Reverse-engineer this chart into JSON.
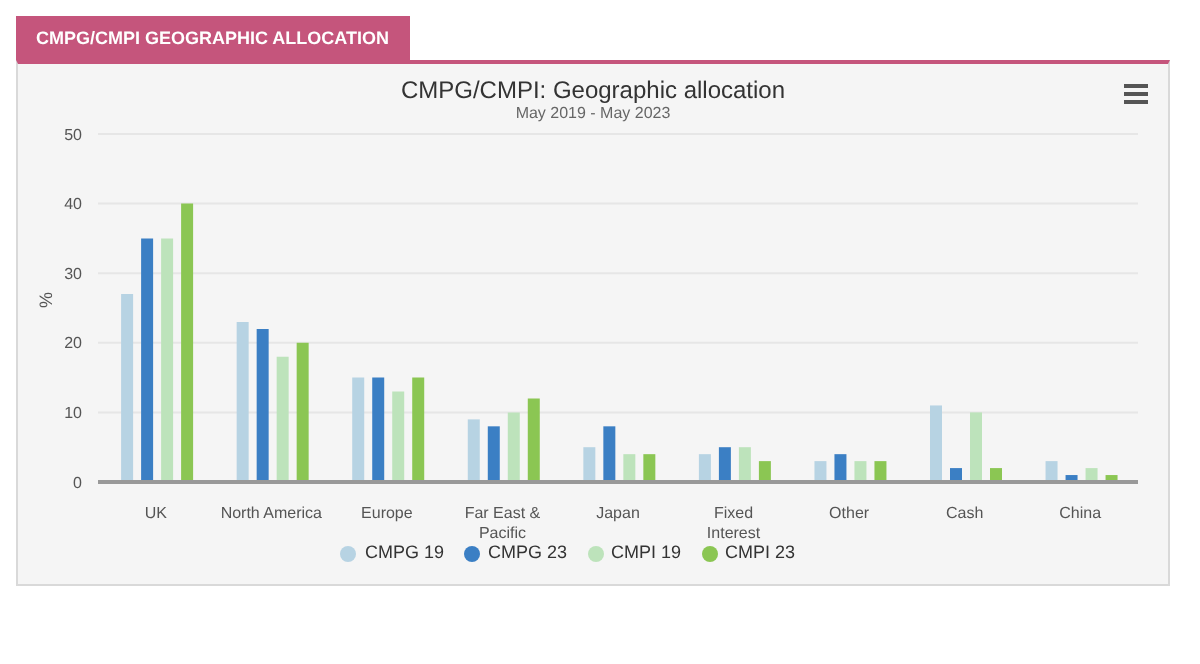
{
  "chart_data": {
    "type": "bar",
    "title": "CMPG/CMPI: Geographic allocation",
    "subtitle": "May 2019 - May 2023",
    "ylabel": "%",
    "annotations": [
      "CMPG/CMPI GEOGRAPHIC ALLOCATION"
    ],
    "categories": [
      "UK",
      "North America",
      "Europe",
      "Far East & Pacific",
      "Japan",
      "Fixed Interest",
      "Other",
      "Cash",
      "China"
    ],
    "series": [
      {
        "name": "CMPG 19",
        "color": "#b7d3e3",
        "values": [
          27,
          23,
          15,
          9,
          5,
          4,
          3,
          11,
          3
        ]
      },
      {
        "name": "CMPG 23",
        "color": "#3b7fc4",
        "values": [
          35,
          22,
          15,
          8,
          8,
          5,
          4,
          2,
          1
        ]
      },
      {
        "name": "CMPI 19",
        "color": "#bde3bb",
        "values": [
          35,
          18,
          13,
          10,
          4,
          5,
          3,
          10,
          2
        ]
      },
      {
        "name": "CMPI 23",
        "color": "#8bc653",
        "values": [
          40,
          20,
          15,
          12,
          4,
          3,
          3,
          2,
          1
        ]
      }
    ],
    "ylim": [
      0,
      50
    ],
    "yticks": [
      0,
      10,
      20,
      30,
      40,
      50
    ],
    "grid": "y",
    "legend": "bottom"
  }
}
